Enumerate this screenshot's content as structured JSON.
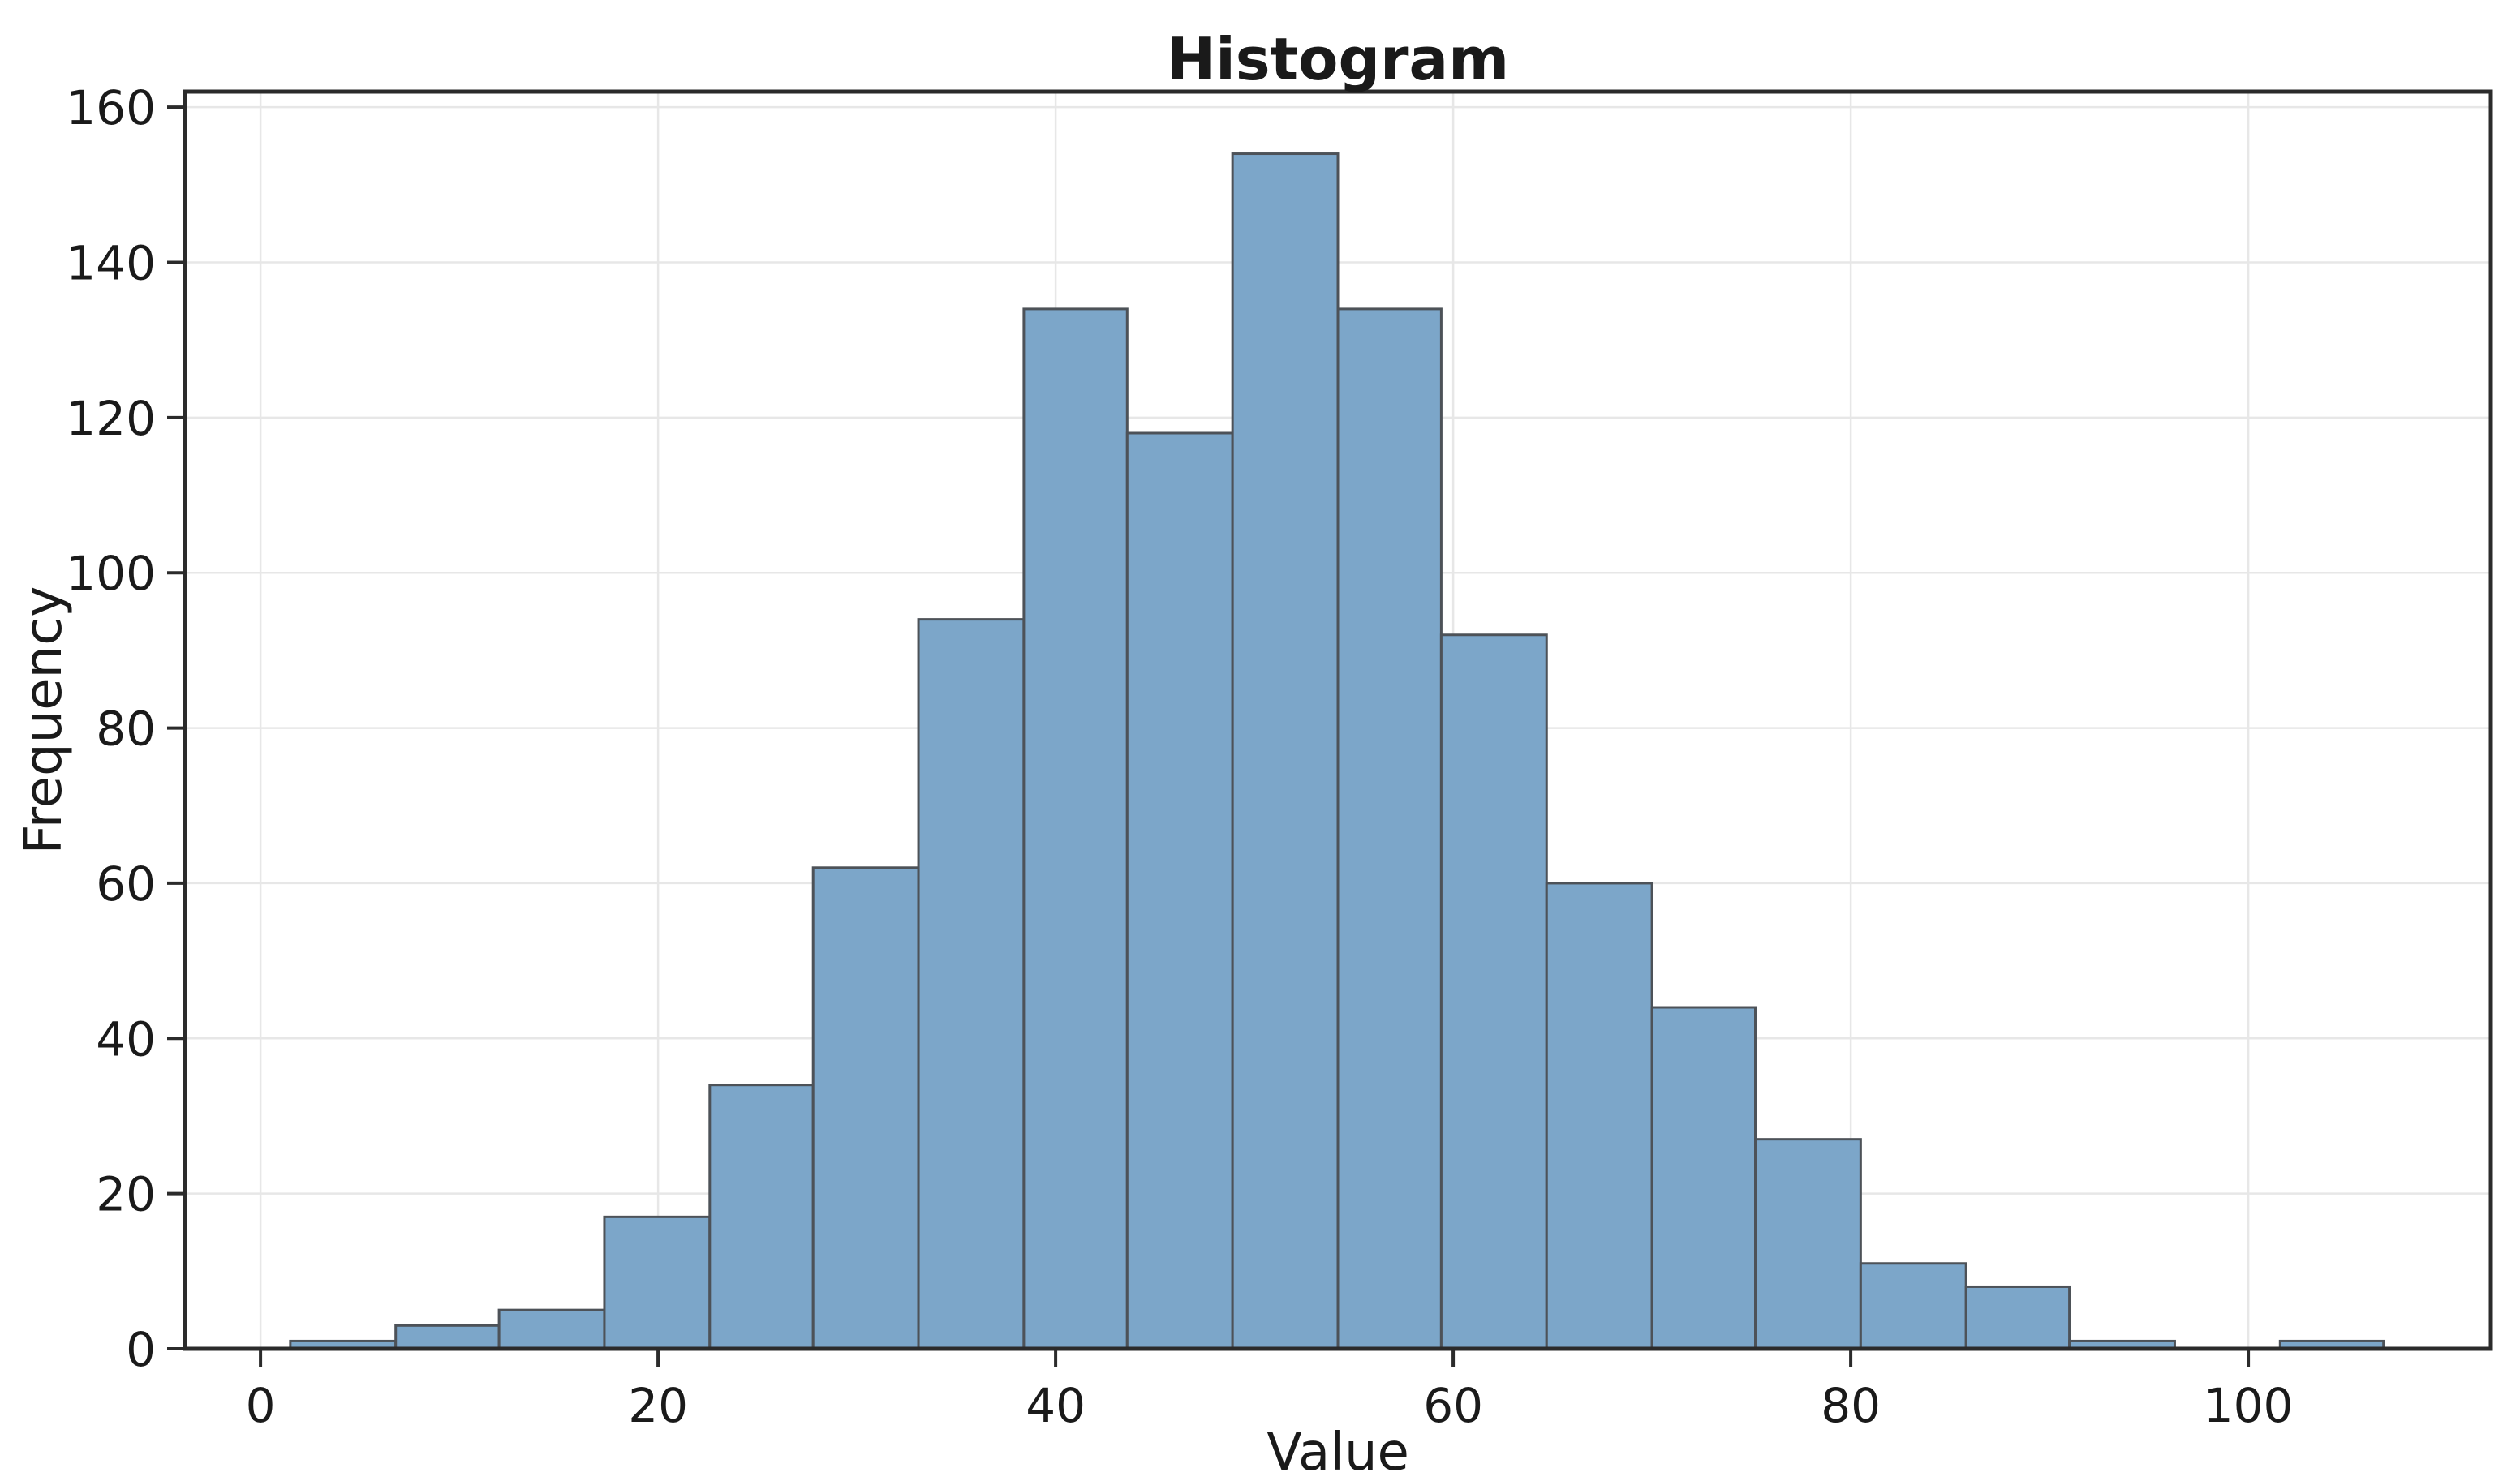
{
  "chart_data": {
    "type": "bar",
    "subtype": "histogram",
    "title": "Histogram",
    "xlabel": "Value",
    "ylabel": "Frequency",
    "bin_edges": [
      1.5,
      6.8,
      12.0,
      17.3,
      22.6,
      27.8,
      33.1,
      38.4,
      43.6,
      48.9,
      54.2,
      59.4,
      64.7,
      70.0,
      75.2,
      80.5,
      85.8,
      91.0,
      96.3,
      101.6,
      106.8
    ],
    "counts": [
      1,
      3,
      5,
      17,
      34,
      62,
      94,
      134,
      118,
      154,
      134,
      92,
      60,
      44,
      27,
      11,
      8,
      1,
      0,
      1
    ],
    "x_ticks": [
      0,
      20,
      40,
      60,
      80,
      100
    ],
    "y_ticks": [
      0,
      20,
      40,
      60,
      80,
      100,
      120,
      140,
      160
    ],
    "xlim": [
      -3.8,
      112.2
    ],
    "ylim": [
      0,
      162
    ],
    "grid": true,
    "legend": "none",
    "bar_color": "#7CA6C9",
    "bar_edge_color": "#4D5258",
    "grid_color": "#E7E7E7",
    "spine_color": "#2B2B2B",
    "tick_color": "#2B2B2B",
    "text_color": "#1A1A1A",
    "background_color": "#FFFFFF"
  }
}
